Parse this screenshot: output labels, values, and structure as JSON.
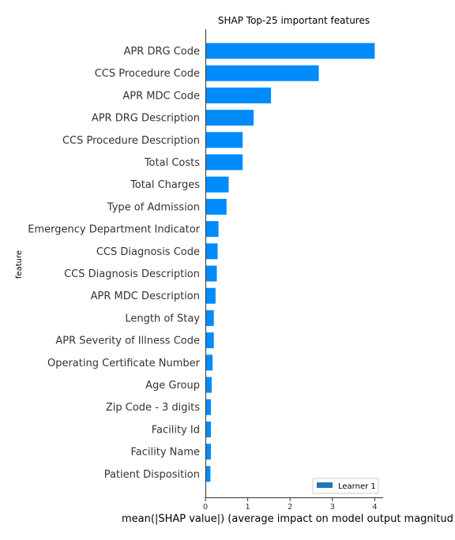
{
  "chart_data": {
    "type": "bar",
    "orientation": "horizontal",
    "title": "SHAP Top-25 important features",
    "xlabel": "mean(|SHAP value|) (average impact on model output magnitud",
    "ylabel": "feature",
    "xlim": [
      0,
      4.2
    ],
    "xticks": [
      "0",
      "1",
      "2",
      "3",
      "4"
    ],
    "legend_position": "bottom-right",
    "series": [
      {
        "name": "Learner 1",
        "color": "#1f77b4",
        "bar_color": "#008bfb",
        "categories": [
          "APR DRG Code",
          "CCS Procedure Code",
          "APR MDC Code",
          "APR DRG Description",
          "CCS Procedure Description",
          "Total Costs",
          "Total Charges",
          "Type of Admission",
          "Emergency Department Indicator",
          "CCS Diagnosis Code",
          "CCS Diagnosis Description",
          "APR MDC Description",
          "Length of Stay",
          "APR Severity of Illness Code",
          "Operating Certificate Number",
          "Age Group",
          "Zip Code - 3 digits",
          "Facility Id",
          "Facility Name",
          "Patient Disposition"
        ],
        "values": [
          4.0,
          2.68,
          1.55,
          1.14,
          0.88,
          0.88,
          0.55,
          0.5,
          0.31,
          0.29,
          0.27,
          0.24,
          0.2,
          0.2,
          0.17,
          0.15,
          0.13,
          0.13,
          0.13,
          0.12
        ]
      }
    ]
  }
}
